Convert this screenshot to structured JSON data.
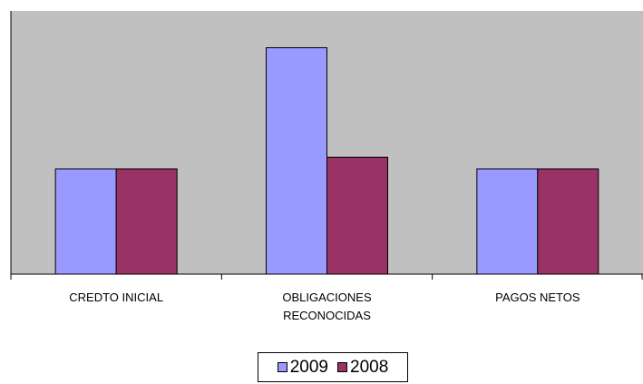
{
  "chart_data": {
    "type": "bar",
    "categories": [
      "CREDTO INICIAL",
      "OBLIGACIONES\nRECONOCIDAS",
      "PAGOS NETOS"
    ],
    "series": [
      {
        "name": "2009",
        "values": [
          1.0,
          2.15,
          1.0
        ],
        "color": "#9999ff"
      },
      {
        "name": "2008",
        "values": [
          1.0,
          1.11,
          1.0
        ],
        "color": "#993366"
      }
    ],
    "ylim": [
      0,
      2.5
    ],
    "grid": false,
    "plot_background": "#c0c0c0",
    "legend_position": "bottom"
  }
}
